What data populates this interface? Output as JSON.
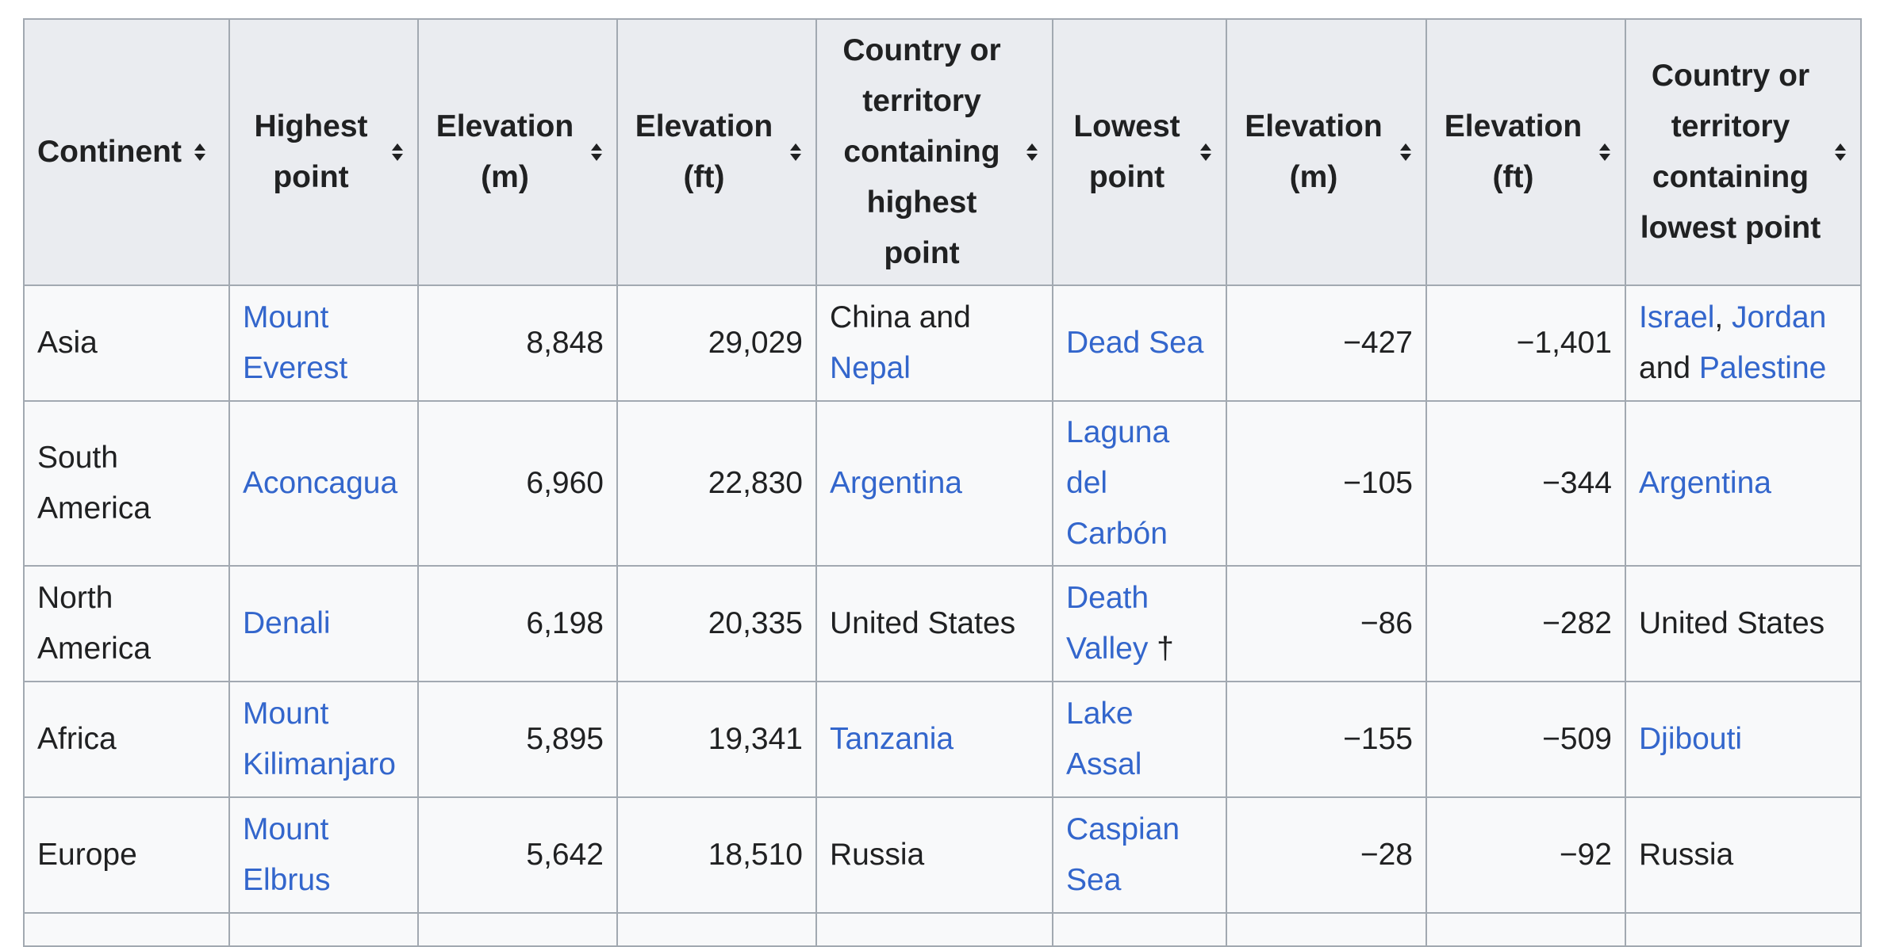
{
  "table": {
    "headers": [
      {
        "label": "Continent",
        "name": "header-continent"
      },
      {
        "label": "Highest point",
        "name": "header-highest-point"
      },
      {
        "label": "Elevation (m)",
        "name": "header-highest-elevation-m"
      },
      {
        "label": "Elevation (ft)",
        "name": "header-highest-elevation-ft"
      },
      {
        "label": "Country or territory containing highest point",
        "name": "header-highest-country"
      },
      {
        "label": "Lowest point",
        "name": "header-lowest-point"
      },
      {
        "label": "Elevation (m)",
        "name": "header-lowest-elevation-m"
      },
      {
        "label": "Elevation (ft)",
        "name": "header-lowest-elevation-ft"
      },
      {
        "label": "Country or territory containing lowest point",
        "name": "header-lowest-country"
      }
    ],
    "sort_icon": "sort-up-down-icon",
    "link_color": "#3366cc",
    "rows": [
      {
        "continent": "Asia",
        "highest_point": "Mount Everest",
        "high_m": "8,848",
        "high_ft": "29,029",
        "high_country": {
          "pre": "China and ",
          "link": "Nepal"
        },
        "lowest_point": "Dead Sea",
        "lowest_suffix": "",
        "low_m": "−427",
        "low_ft": "−1,401",
        "low_country": {
          "link1": "Israel",
          "sep1": ", ",
          "link2": "Jordan",
          "sep2": " and ",
          "link3": "Palestine"
        }
      },
      {
        "continent": "South America",
        "highest_point": "Aconcagua",
        "high_m": "6,960",
        "high_ft": "22,830",
        "high_country": {
          "link": "Argentina"
        },
        "lowest_point": "Laguna del Carbón",
        "lowest_suffix": "",
        "low_m": "−105",
        "low_ft": "−344",
        "low_country": {
          "link": "Argentina"
        }
      },
      {
        "continent": "North America",
        "highest_point": "Denali",
        "high_m": "6,198",
        "high_ft": "20,335",
        "high_country": {
          "text": "United States"
        },
        "lowest_point": "Death Valley",
        "lowest_suffix": " †",
        "low_m": "−86",
        "low_ft": "−282",
        "low_country": {
          "text": "United States"
        }
      },
      {
        "continent": "Africa",
        "highest_point": "Mount Kilimanjaro",
        "high_m": "5,895",
        "high_ft": "19,341",
        "high_country": {
          "link": "Tanzania"
        },
        "lowest_point": "Lake Assal",
        "lowest_suffix": "",
        "low_m": "−155",
        "low_ft": "−509",
        "low_country": {
          "link": "Djibouti"
        }
      },
      {
        "continent": "Europe",
        "highest_point": "Mount Elbrus",
        "high_m": "5,642",
        "high_ft": "18,510",
        "high_country": {
          "text": "Russia"
        },
        "lowest_point": "Caspian Sea",
        "lowest_suffix": "",
        "low_m": "−28",
        "low_ft": "−92",
        "low_country": {
          "text": "Russia"
        }
      }
    ]
  }
}
